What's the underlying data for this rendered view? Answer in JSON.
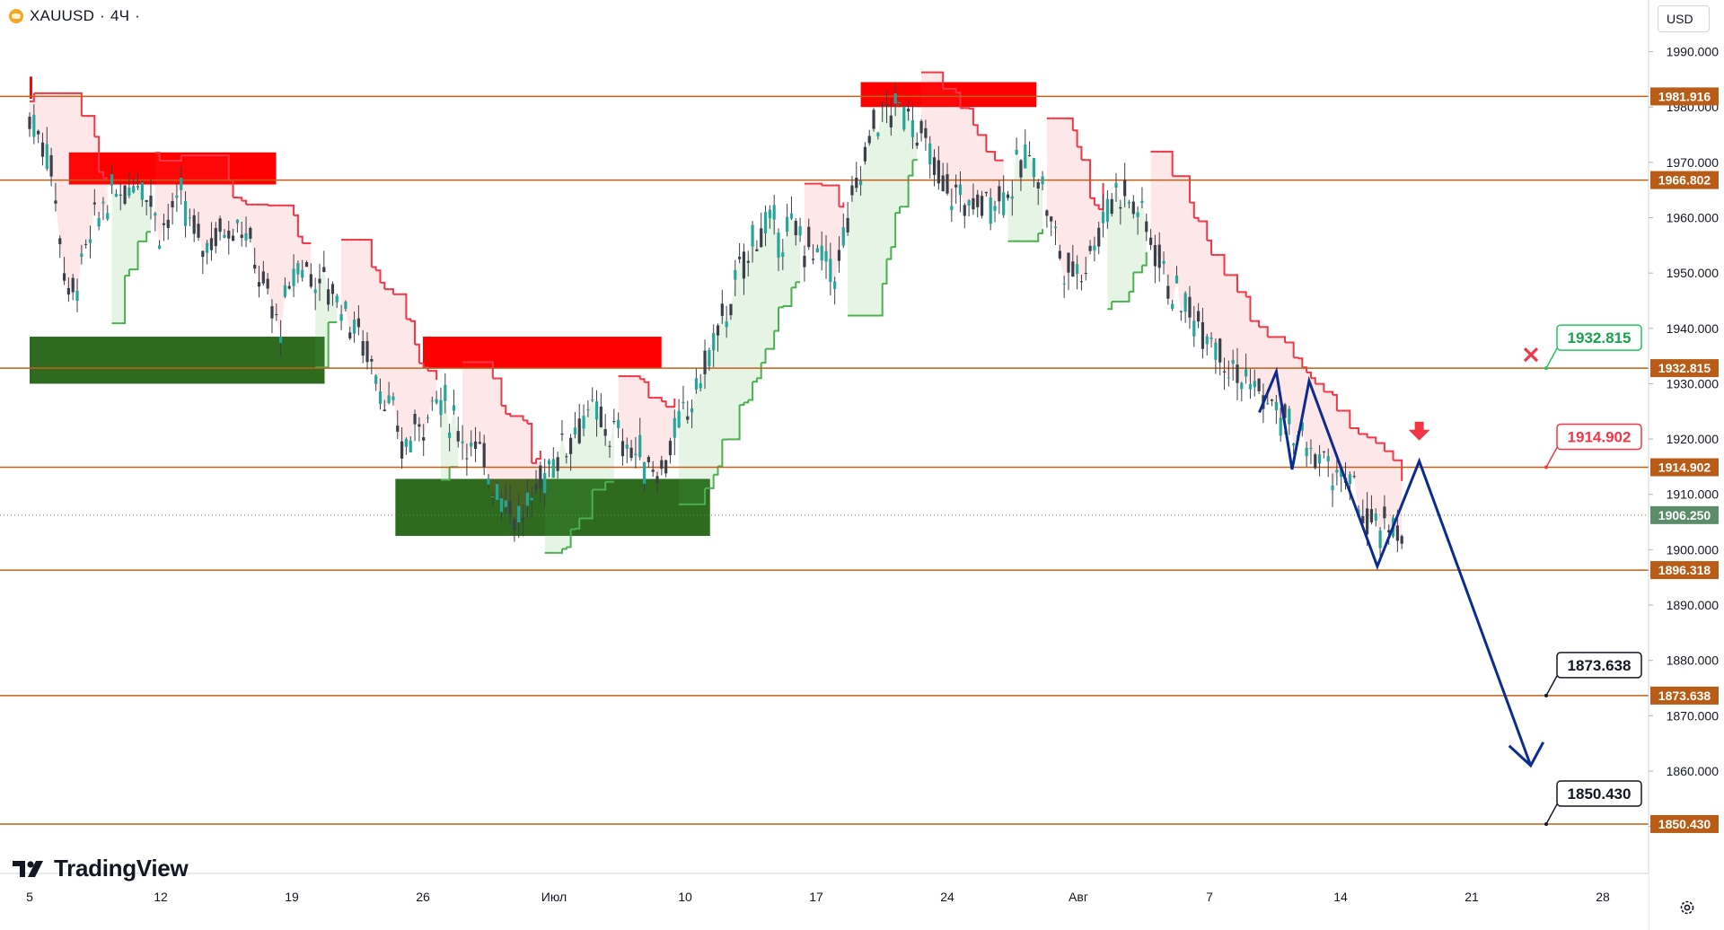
{
  "header": {
    "symbol": "XAUUSD",
    "separator": "·",
    "interval": "4Ч",
    "dot": "·"
  },
  "currency_button": {
    "label": "USD"
  },
  "brand": {
    "name": "TradingView"
  },
  "icons": {
    "settings": "gear-icon",
    "symbol_logo": "gold-bar-icon"
  },
  "colors": {
    "level_line": "#c0601a",
    "level_label_bg": "#b85c17",
    "supply_zone": "#ff0000",
    "demand_zone": "#2e6b1f",
    "trend_down": "#f23645",
    "trend_up": "#4caf50",
    "projection": "#0d2c8f",
    "current_price": "#5d8c6b",
    "candle": "#3a3f4a"
  },
  "chart_data": {
    "type": "candlestick",
    "symbol": "XAUUSD",
    "timeframe": "4Ч",
    "ylim": [
      1841.5,
      1993.5
    ],
    "x_ticks": [
      "5",
      "12",
      "19",
      "26",
      "Июл",
      "10",
      "17",
      "24",
      "Авг",
      "7",
      "14",
      "21",
      "28"
    ],
    "y_ticks": [
      "1850.000",
      "1860.000",
      "1870.000",
      "1880.000",
      "1890.000",
      "1900.000",
      "1910.000",
      "1920.000",
      "1930.000",
      "1940.000",
      "1950.000",
      "1960.000",
      "1970.000",
      "1980.000",
      "1990.000"
    ],
    "levels": [
      {
        "value": 1981.916,
        "label": "1981.916"
      },
      {
        "value": 1966.802,
        "label": "1966.802"
      },
      {
        "value": 1932.815,
        "label": "1932.815"
      },
      {
        "value": 1914.902,
        "label": "1914.902"
      },
      {
        "value": 1896.318,
        "label": "1896.318"
      },
      {
        "value": 1873.638,
        "label": "1873.638"
      },
      {
        "value": 1850.43,
        "label": "1850.430"
      }
    ],
    "current_price": {
      "value": 1906.25,
      "label": "1906.250"
    },
    "callouts": [
      {
        "value": 1932.815,
        "label": "1932.815",
        "style": "green",
        "marker": "cross"
      },
      {
        "value": 1914.902,
        "label": "1914.902",
        "style": "red",
        "marker": "down-arrow"
      },
      {
        "value": 1873.638,
        "label": "1873.638",
        "style": "black"
      },
      {
        "value": 1850.43,
        "label": "1850.430",
        "style": "black"
      }
    ],
    "zones": [
      {
        "type": "supply",
        "from_week": 0.0,
        "to_week": 0.02,
        "top": 1985.5,
        "bottom": 1981.5
      },
      {
        "type": "supply",
        "from_week": 0.3,
        "to_week": 1.88,
        "top": 1971.8,
        "bottom": 1966.0
      },
      {
        "type": "demand",
        "from_week": 0.0,
        "to_week": 2.25,
        "top": 1938.5,
        "bottom": 1930.0
      },
      {
        "type": "supply",
        "from_week": 3.0,
        "to_week": 4.82,
        "top": 1938.5,
        "bottom": 1932.8
      },
      {
        "type": "demand",
        "from_week": 2.79,
        "to_week": 5.19,
        "top": 1912.8,
        "bottom": 1902.5
      },
      {
        "type": "supply",
        "from_week": 6.34,
        "to_week": 7.68,
        "top": 1984.5,
        "bottom": 1980.0
      }
    ],
    "projection_path": [
      {
        "week": 9.38,
        "price": 1924.8
      },
      {
        "week": 9.51,
        "price": 1932.2
      },
      {
        "week": 9.63,
        "price": 1914.5
      },
      {
        "week": 9.76,
        "price": 1930.5
      },
      {
        "week": 10.28,
        "price": 1897.0
      },
      {
        "week": 10.6,
        "price": 1916.0
      },
      {
        "week": 11.45,
        "price": 1861.0
      }
    ]
  }
}
